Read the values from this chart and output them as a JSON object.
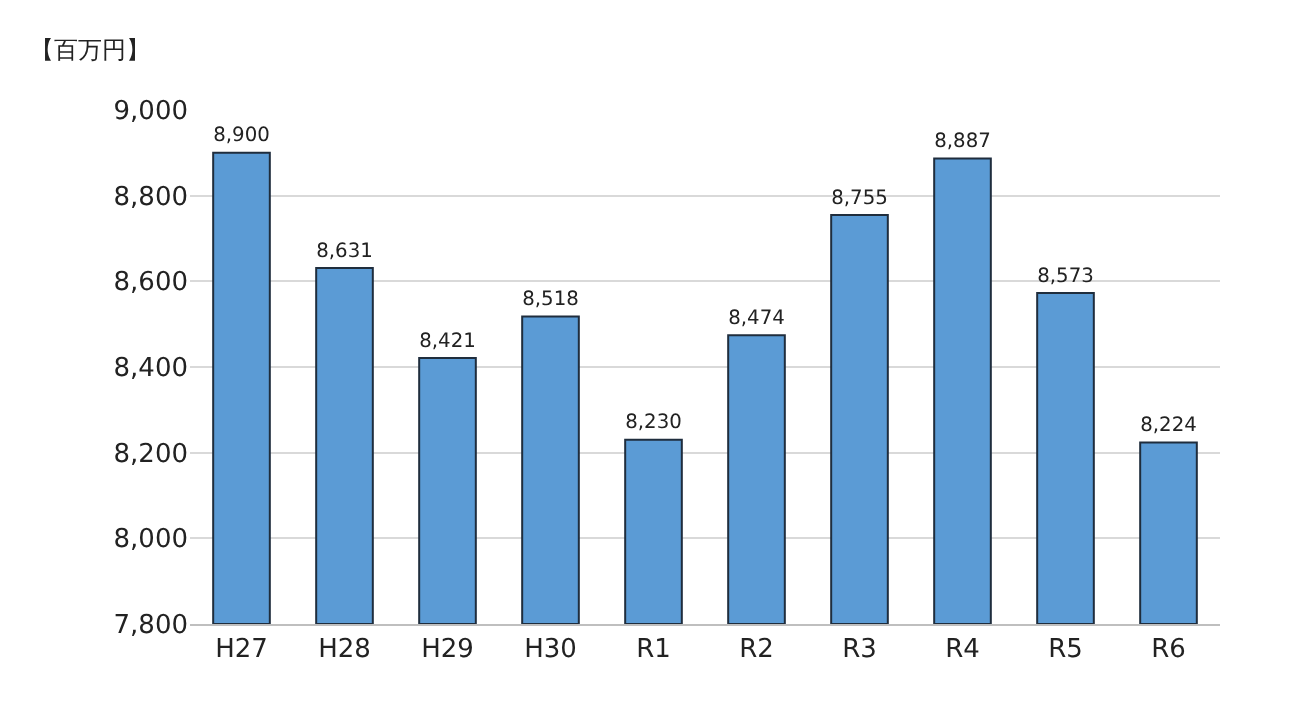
{
  "chart_data": {
    "type": "bar",
    "ylabel": "【百万円】",
    "categories": [
      "H27",
      "H28",
      "H29",
      "H30",
      "R1",
      "R2",
      "R3",
      "R4",
      "R5",
      "R6"
    ],
    "values": [
      8900,
      8631,
      8421,
      8518,
      8230,
      8474,
      8755,
      8887,
      8573,
      8224
    ],
    "value_labels": [
      "8,900",
      "8,631",
      "8,421",
      "8,518",
      "8,230",
      "8,474",
      "8,755",
      "8,887",
      "8,573",
      "8,224"
    ],
    "color": "#5b9bd5",
    "ylim": [
      7800,
      9000
    ],
    "yticks": [
      {
        "value": 7800,
        "label": "7,800"
      },
      {
        "value": 8000,
        "label": "8,000"
      },
      {
        "value": 8200,
        "label": "8,200"
      },
      {
        "value": 8400,
        "label": "8,400"
      },
      {
        "value": 8600,
        "label": "8,600"
      },
      {
        "value": 8800,
        "label": "8,800"
      },
      {
        "value": 9000,
        "label": "9,000"
      }
    ],
    "grid": "y"
  }
}
